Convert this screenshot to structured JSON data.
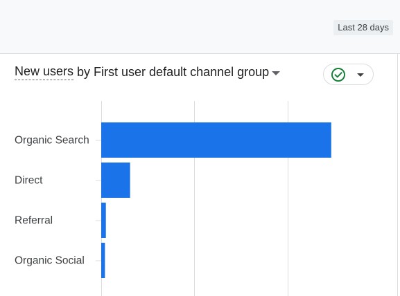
{
  "header": {
    "date_range": "Last 28 days"
  },
  "card": {
    "title_metric": "New users",
    "title_rest": "by First user default channel group"
  },
  "colors": {
    "bar": "#1a73e8",
    "check": "#188038"
  },
  "chart_data": {
    "type": "bar",
    "orientation": "horizontal",
    "categories": [
      "Organic Search",
      "Direct",
      "Referral",
      "Organic Social"
    ],
    "values": [
      247,
      31,
      5,
      4
    ],
    "xlim": [
      0,
      300
    ],
    "grid": true
  }
}
